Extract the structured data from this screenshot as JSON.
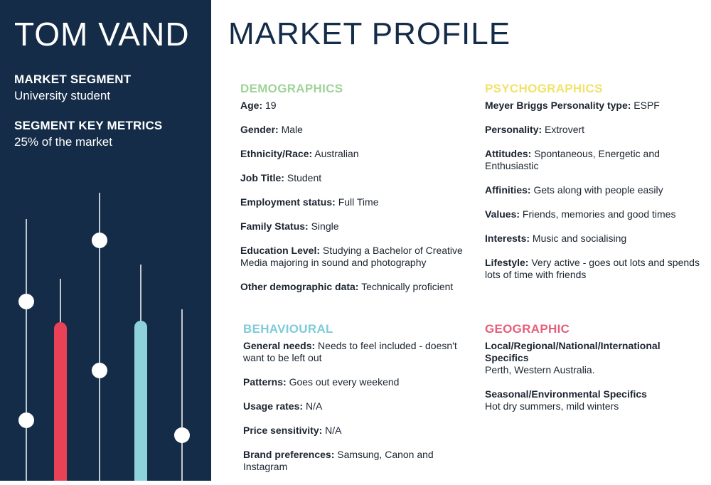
{
  "sidebar": {
    "name": "TOM VAND",
    "segment_label": "MARKET SEGMENT",
    "segment_value": "University student",
    "metrics_label": "SEGMENT KEY METRICS",
    "metrics_value": "25% of the market",
    "colors": {
      "background": "#142c47",
      "red_bar": "#e94257",
      "blue_bar": "#8ed2dc",
      "line": "#ffffff"
    }
  },
  "main": {
    "title": "MARKET PROFILE",
    "demographics": {
      "heading": "DEMOGRAPHICS",
      "fields": [
        {
          "label": "Age:",
          "value": "19"
        },
        {
          "label": "Gender:",
          "value": "Male"
        },
        {
          "label": "Ethnicity/Race:",
          "value": "Australian"
        },
        {
          "label": "Job Title:",
          "value": "Student"
        },
        {
          "label": "Employment status:",
          "value": "Full Time"
        },
        {
          "label": "Family Status:",
          "value": "Single"
        },
        {
          "label": "Education Level:",
          "value": "Studying a Bachelor of Creative Media majoring in sound and photography"
        },
        {
          "label": "Other demographic data:",
          "value": "Technically proficient"
        }
      ]
    },
    "psychographics": {
      "heading": "PSYCHOGRAPHICS",
      "fields": [
        {
          "label": "Meyer Briggs Personality type:",
          "value": "ESPF"
        },
        {
          "label": "Personality:",
          "value": "Extrovert"
        },
        {
          "label": "Attitudes:",
          "value": "Spontaneous, Energetic and Enthusiastic"
        },
        {
          "label": "Affinities:",
          "value": "Gets along with people easily"
        },
        {
          "label": "Values:",
          "value": "Friends, memories and good times"
        },
        {
          "label": "Interests:",
          "value": "Music and socialising"
        },
        {
          "label": "Lifestyle:",
          "value": "Very active - goes out lots and spends lots of time with friends"
        }
      ]
    },
    "behavioural": {
      "heading": "BEHAVIOURAL",
      "fields": [
        {
          "label": "General needs:",
          "value": "Needs to feel included - doesn't want to be left out"
        },
        {
          "label": "Patterns:",
          "value": "Goes out every weekend"
        },
        {
          "label": "Usage rates:",
          "value": "N/A"
        },
        {
          "label": "Price sensitivity:",
          "value": "N/A"
        },
        {
          "label": "Brand preferences:",
          "value": "Samsung, Canon and Instagram"
        }
      ]
    },
    "geographic": {
      "heading": "GEOGRAPHIC",
      "fields": [
        {
          "label": "Local/Regional/National/International Specifics",
          "value": "Perth, Western Australia."
        },
        {
          "label": "Seasonal/Environmental Specifics",
          "value": "Hot dry summers, mild winters"
        }
      ]
    },
    "colors": {
      "demographics": "#9fd39a",
      "psychographics": "#f1e26b",
      "behavioural": "#7fcbd9",
      "geographic": "#e5607a"
    }
  }
}
